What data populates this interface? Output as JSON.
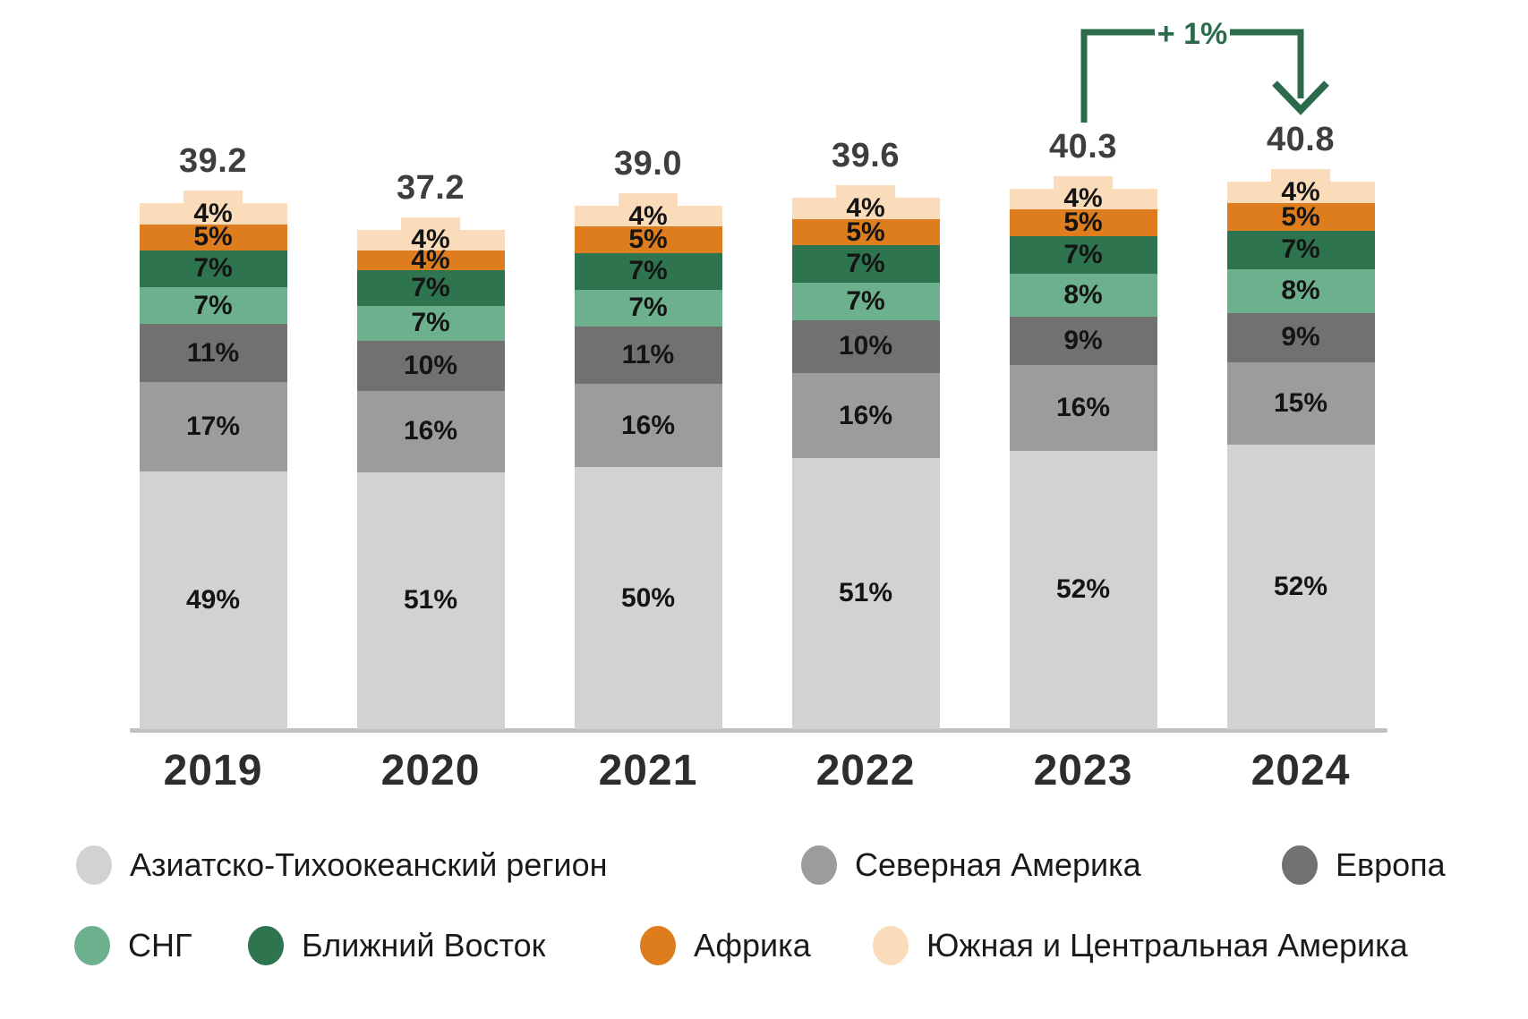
{
  "chart_data": {
    "type": "bar",
    "stacked": true,
    "value_suffix": "%",
    "categories": [
      "2019",
      "2020",
      "2021",
      "2022",
      "2023",
      "2024"
    ],
    "totals": [
      "39.2",
      "37.2",
      "39.0",
      "39.6",
      "40.3",
      "40.8"
    ],
    "series": [
      {
        "name": "Азиатско-Тихоокеанский регион",
        "color": "#d2d2d0",
        "values": [
          49,
          51,
          50,
          51,
          52,
          52
        ]
      },
      {
        "name": "Северная Америка",
        "color": "#9c9c9a",
        "values": [
          17,
          16,
          16,
          16,
          16,
          15
        ]
      },
      {
        "name": "Европа",
        "color": "#717170",
        "values": [
          11,
          10,
          11,
          10,
          9,
          9
        ]
      },
      {
        "name": "СНГ",
        "color": "#6cb08d",
        "values": [
          7,
          7,
          7,
          7,
          8,
          8
        ]
      },
      {
        "name": "Ближний Восток",
        "color": "#2e744f",
        "values": [
          7,
          7,
          7,
          7,
          7,
          7
        ]
      },
      {
        "name": "Африка",
        "color": "#de7d1e",
        "values": [
          5,
          4,
          5,
          5,
          5,
          5
        ]
      },
      {
        "name": "Южная и Центральная Америка",
        "color": "#fbdcba",
        "values": [
          4,
          4,
          4,
          4,
          4,
          4
        ]
      }
    ],
    "annotation": {
      "text": "+ 1%",
      "from_category": "2023",
      "to_category": "2024",
      "color": "#2b6b4c"
    },
    "axis": {
      "gridlines": false,
      "baseline_color": "#c2c1bf"
    },
    "legend_position": "bottom"
  },
  "legend": {
    "rows": [
      [
        {
          "label": "Азиатско-Тихоокеанский регион",
          "color": "#d2d2d0"
        },
        {
          "label": "Северная Америка",
          "color": "#9c9c9a"
        },
        {
          "label": "Европа",
          "color": "#717170"
        }
      ],
      [
        {
          "label": "СНГ",
          "color": "#6cb08d"
        },
        {
          "label": "Ближний Восток",
          "color": "#2e744f"
        },
        {
          "label": "Африка",
          "color": "#de7d1e"
        },
        {
          "label": "Южная и Центральная Америка",
          "color": "#fbdcba"
        }
      ]
    ]
  }
}
